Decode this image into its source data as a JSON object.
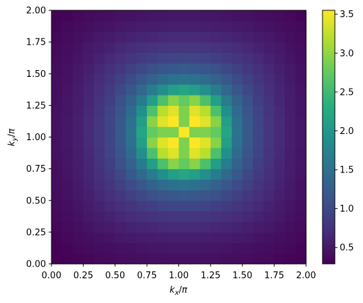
{
  "chart_data": {
    "type": "heatmap",
    "title": "",
    "xlabel": "k_x/π",
    "ylabel": "k_y/π",
    "xlim": [
      0.0,
      2.0
    ],
    "ylim": [
      0.0,
      2.0
    ],
    "grid": false,
    "legend": "none",
    "colormap": "viridis",
    "colorbar": {
      "vmin": 0.29,
      "vmax": 3.55,
      "ticks": [
        0.5,
        1.0,
        1.5,
        2.0,
        2.5,
        3.0,
        3.5
      ],
      "tick_labels": [
        "0.5",
        "1.0",
        "1.5",
        "2.0",
        "2.5",
        "3.0",
        "3.5"
      ]
    },
    "x_ticks": [
      0.0,
      0.25,
      0.5,
      0.75,
      1.0,
      1.25,
      1.5,
      1.75,
      2.0
    ],
    "x_tick_labels": [
      "0.00",
      "0.25",
      "0.50",
      "0.75",
      "1.00",
      "1.25",
      "1.50",
      "1.75",
      "2.00"
    ],
    "y_ticks": [
      0.0,
      0.25,
      0.5,
      0.75,
      1.0,
      1.25,
      1.5,
      1.75,
      2.0
    ],
    "y_tick_labels": [
      "0.00",
      "0.25",
      "0.50",
      "0.75",
      "1.00",
      "1.25",
      "1.50",
      "1.75",
      "2.00"
    ],
    "grid_size": 24,
    "cell_step": 0.08333,
    "center_note": "peak structure near (1.0, 1.0)",
    "values": [
      [
        0.3,
        0.31,
        0.33,
        0.35,
        0.37,
        0.38,
        0.4,
        0.41,
        0.42,
        0.43,
        0.44,
        0.44,
        0.45,
        0.44,
        0.44,
        0.43,
        0.42,
        0.41,
        0.4,
        0.38,
        0.37,
        0.35,
        0.33,
        0.31
      ],
      [
        0.31,
        0.33,
        0.36,
        0.38,
        0.4,
        0.42,
        0.44,
        0.45,
        0.47,
        0.48,
        0.48,
        0.49,
        0.49,
        0.49,
        0.48,
        0.48,
        0.47,
        0.45,
        0.44,
        0.42,
        0.4,
        0.38,
        0.36,
        0.33
      ],
      [
        0.33,
        0.36,
        0.39,
        0.42,
        0.45,
        0.47,
        0.5,
        0.52,
        0.54,
        0.55,
        0.56,
        0.57,
        0.57,
        0.57,
        0.56,
        0.55,
        0.54,
        0.52,
        0.5,
        0.47,
        0.45,
        0.42,
        0.39,
        0.36
      ],
      [
        0.35,
        0.38,
        0.42,
        0.46,
        0.5,
        0.53,
        0.57,
        0.6,
        0.62,
        0.64,
        0.66,
        0.67,
        0.67,
        0.67,
        0.66,
        0.64,
        0.62,
        0.6,
        0.57,
        0.53,
        0.5,
        0.46,
        0.42,
        0.38
      ],
      [
        0.37,
        0.4,
        0.45,
        0.5,
        0.55,
        0.6,
        0.65,
        0.69,
        0.73,
        0.76,
        0.78,
        0.8,
        0.8,
        0.8,
        0.78,
        0.76,
        0.73,
        0.69,
        0.65,
        0.6,
        0.55,
        0.5,
        0.45,
        0.4
      ],
      [
        0.38,
        0.42,
        0.47,
        0.53,
        0.6,
        0.66,
        0.73,
        0.79,
        0.85,
        0.9,
        0.94,
        0.96,
        0.97,
        0.96,
        0.94,
        0.9,
        0.85,
        0.79,
        0.73,
        0.66,
        0.6,
        0.53,
        0.47,
        0.42
      ],
      [
        0.4,
        0.44,
        0.5,
        0.57,
        0.65,
        0.73,
        0.82,
        0.91,
        1.0,
        1.08,
        1.14,
        1.18,
        1.2,
        1.18,
        1.14,
        1.08,
        1.0,
        0.91,
        0.82,
        0.73,
        0.65,
        0.57,
        0.5,
        0.44
      ],
      [
        0.41,
        0.45,
        0.52,
        0.6,
        0.69,
        0.79,
        0.91,
        1.04,
        1.18,
        1.31,
        1.42,
        1.5,
        1.53,
        1.5,
        1.42,
        1.31,
        1.18,
        1.04,
        0.91,
        0.79,
        0.69,
        0.6,
        0.52,
        0.45
      ],
      [
        0.42,
        0.47,
        0.54,
        0.62,
        0.73,
        0.85,
        1.0,
        1.18,
        1.4,
        1.65,
        1.9,
        2.1,
        2.2,
        2.1,
        1.9,
        1.65,
        1.4,
        1.18,
        1.0,
        0.85,
        0.73,
        0.62,
        0.54,
        0.47
      ],
      [
        0.43,
        0.48,
        0.55,
        0.64,
        0.76,
        0.9,
        1.08,
        1.31,
        1.65,
        2.1,
        2.6,
        2.95,
        2.75,
        2.95,
        2.6,
        2.1,
        1.65,
        1.31,
        1.08,
        0.9,
        0.76,
        0.64,
        0.55,
        0.48
      ],
      [
        0.44,
        0.48,
        0.56,
        0.66,
        0.78,
        0.94,
        1.14,
        1.42,
        1.9,
        2.6,
        3.2,
        3.4,
        2.9,
        3.4,
        3.2,
        2.6,
        1.9,
        1.42,
        1.14,
        0.94,
        0.78,
        0.66,
        0.56,
        0.48
      ],
      [
        0.44,
        0.49,
        0.57,
        0.67,
        0.8,
        0.96,
        1.18,
        1.5,
        2.1,
        2.95,
        3.4,
        3.55,
        2.9,
        3.55,
        3.4,
        2.95,
        2.1,
        1.5,
        1.18,
        0.96,
        0.8,
        0.67,
        0.57,
        0.49
      ],
      [
        0.45,
        0.49,
        0.57,
        0.67,
        0.8,
        0.97,
        1.2,
        1.53,
        2.2,
        2.75,
        2.9,
        2.9,
        3.55,
        2.9,
        2.9,
        2.75,
        2.2,
        1.53,
        1.2,
        0.97,
        0.8,
        0.67,
        0.57,
        0.49
      ],
      [
        0.44,
        0.49,
        0.57,
        0.67,
        0.8,
        0.96,
        1.18,
        1.5,
        2.1,
        2.95,
        3.4,
        3.55,
        2.9,
        3.55,
        3.4,
        2.95,
        2.1,
        1.5,
        1.18,
        0.96,
        0.8,
        0.67,
        0.57,
        0.49
      ],
      [
        0.44,
        0.48,
        0.56,
        0.66,
        0.78,
        0.94,
        1.14,
        1.42,
        1.9,
        2.6,
        3.2,
        3.4,
        2.9,
        3.4,
        3.2,
        2.6,
        1.9,
        1.42,
        1.14,
        0.94,
        0.78,
        0.66,
        0.56,
        0.48
      ],
      [
        0.43,
        0.48,
        0.55,
        0.64,
        0.76,
        0.9,
        1.08,
        1.31,
        1.65,
        2.1,
        2.6,
        2.95,
        2.75,
        2.95,
        2.6,
        2.1,
        1.65,
        1.31,
        1.08,
        0.9,
        0.76,
        0.64,
        0.55,
        0.48
      ],
      [
        0.42,
        0.47,
        0.54,
        0.62,
        0.73,
        0.85,
        1.0,
        1.18,
        1.4,
        1.65,
        1.9,
        2.1,
        2.2,
        2.1,
        1.9,
        1.65,
        1.4,
        1.18,
        1.0,
        0.85,
        0.73,
        0.62,
        0.54,
        0.47
      ],
      [
        0.41,
        0.45,
        0.52,
        0.6,
        0.69,
        0.79,
        0.91,
        1.04,
        1.18,
        1.31,
        1.42,
        1.5,
        1.53,
        1.5,
        1.42,
        1.31,
        1.18,
        1.04,
        0.91,
        0.79,
        0.69,
        0.6,
        0.52,
        0.45
      ],
      [
        0.4,
        0.44,
        0.5,
        0.57,
        0.65,
        0.73,
        0.82,
        0.91,
        1.0,
        1.08,
        1.14,
        1.18,
        1.2,
        1.18,
        1.14,
        1.08,
        1.0,
        0.91,
        0.82,
        0.73,
        0.65,
        0.57,
        0.5,
        0.44
      ],
      [
        0.38,
        0.42,
        0.47,
        0.53,
        0.6,
        0.66,
        0.73,
        0.79,
        0.85,
        0.9,
        0.94,
        0.96,
        0.97,
        0.96,
        0.94,
        0.9,
        0.85,
        0.79,
        0.73,
        0.66,
        0.6,
        0.53,
        0.47,
        0.42
      ],
      [
        0.37,
        0.4,
        0.45,
        0.5,
        0.55,
        0.6,
        0.65,
        0.69,
        0.73,
        0.76,
        0.78,
        0.8,
        0.8,
        0.8,
        0.78,
        0.76,
        0.73,
        0.69,
        0.65,
        0.6,
        0.55,
        0.5,
        0.45,
        0.4
      ],
      [
        0.35,
        0.38,
        0.42,
        0.46,
        0.5,
        0.53,
        0.57,
        0.6,
        0.62,
        0.64,
        0.66,
        0.67,
        0.67,
        0.67,
        0.66,
        0.64,
        0.62,
        0.6,
        0.57,
        0.53,
        0.5,
        0.46,
        0.42,
        0.38
      ],
      [
        0.33,
        0.36,
        0.39,
        0.42,
        0.45,
        0.47,
        0.5,
        0.52,
        0.54,
        0.55,
        0.56,
        0.57,
        0.57,
        0.57,
        0.56,
        0.55,
        0.54,
        0.52,
        0.5,
        0.47,
        0.45,
        0.42,
        0.39,
        0.36
      ],
      [
        0.31,
        0.33,
        0.36,
        0.38,
        0.4,
        0.42,
        0.44,
        0.45,
        0.47,
        0.48,
        0.48,
        0.49,
        0.49,
        0.49,
        0.48,
        0.48,
        0.47,
        0.45,
        0.44,
        0.42,
        0.4,
        0.38,
        0.36,
        0.33
      ]
    ]
  }
}
